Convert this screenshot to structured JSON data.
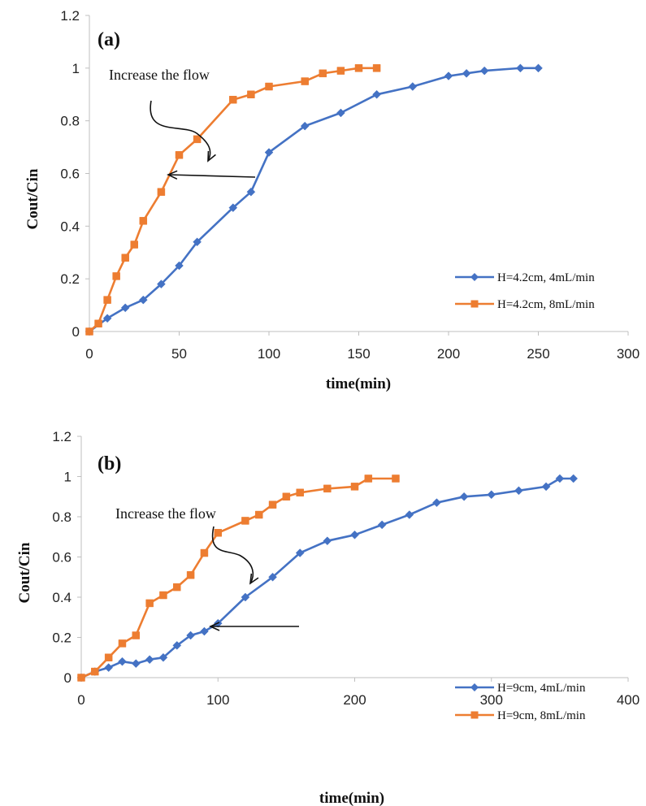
{
  "chart_data": [
    {
      "type": "line",
      "panel_label": "(a)",
      "xlabel": "time(min)",
      "ylabel": "Cout/Cin",
      "xlim": [
        0,
        300
      ],
      "ylim": [
        0,
        1.2
      ],
      "xticks": [
        0,
        50,
        100,
        150,
        200,
        250,
        300
      ],
      "yticks": [
        0,
        0.2,
        0.4,
        0.6,
        0.8,
        1,
        1.2
      ],
      "grid": false,
      "legend_position": "bottom-right",
      "annotation": "Increase the flow",
      "series": [
        {
          "name": "H=4.2cm, 4mL/min",
          "color": "#4472C4",
          "marker": "diamond",
          "x": [
            0,
            10,
            20,
            30,
            40,
            50,
            60,
            80,
            90,
            100,
            120,
            140,
            160,
            180,
            200,
            210,
            220,
            240,
            250
          ],
          "y": [
            0,
            0.05,
            0.09,
            0.12,
            0.18,
            0.25,
            0.34,
            0.47,
            0.53,
            0.68,
            0.78,
            0.83,
            0.9,
            0.93,
            0.97,
            0.98,
            0.99,
            1.0,
            1.0
          ]
        },
        {
          "name": "H=4.2cm, 8mL/min",
          "color": "#ED7D31",
          "marker": "square",
          "x": [
            0,
            5,
            10,
            15,
            20,
            25,
            30,
            40,
            50,
            60,
            80,
            90,
            100,
            120,
            130,
            140,
            150,
            160
          ],
          "y": [
            0,
            0.03,
            0.12,
            0.21,
            0.28,
            0.33,
            0.42,
            0.53,
            0.67,
            0.73,
            0.88,
            0.9,
            0.93,
            0.95,
            0.98,
            0.99,
            1.0,
            1.0
          ]
        }
      ]
    },
    {
      "type": "line",
      "panel_label": "(b)",
      "xlabel": "time(min)",
      "ylabel": "Cout/Cin",
      "xlim": [
        0,
        400
      ],
      "ylim": [
        0,
        1.2
      ],
      "xticks": [
        0,
        100,
        200,
        300,
        400
      ],
      "yticks": [
        0,
        0.2,
        0.4,
        0.6,
        0.8,
        1,
        1.2
      ],
      "grid": false,
      "legend_position": "bottom-right",
      "annotation": "Increase the flow",
      "series": [
        {
          "name": "H=9cm, 4mL/min",
          "color": "#4472C4",
          "marker": "diamond",
          "x": [
            0,
            10,
            20,
            30,
            40,
            50,
            60,
            70,
            80,
            90,
            100,
            120,
            140,
            160,
            180,
            200,
            220,
            240,
            260,
            280,
            300,
            320,
            340,
            350,
            360
          ],
          "y": [
            0,
            0.03,
            0.05,
            0.08,
            0.07,
            0.09,
            0.1,
            0.16,
            0.21,
            0.23,
            0.27,
            0.4,
            0.5,
            0.62,
            0.68,
            0.71,
            0.76,
            0.81,
            0.87,
            0.9,
            0.91,
            0.93,
            0.95,
            0.99,
            0.99
          ]
        },
        {
          "name": "H=9cm, 8mL/min",
          "color": "#ED7D31",
          "marker": "square",
          "x": [
            0,
            10,
            20,
            30,
            40,
            50,
            60,
            70,
            80,
            90,
            100,
            120,
            130,
            140,
            150,
            160,
            180,
            200,
            210,
            230
          ],
          "y": [
            0,
            0.03,
            0.1,
            0.17,
            0.21,
            0.37,
            0.41,
            0.45,
            0.51,
            0.62,
            0.72,
            0.78,
            0.81,
            0.86,
            0.9,
            0.92,
            0.94,
            0.95,
            0.99,
            0.99
          ]
        }
      ]
    }
  ]
}
